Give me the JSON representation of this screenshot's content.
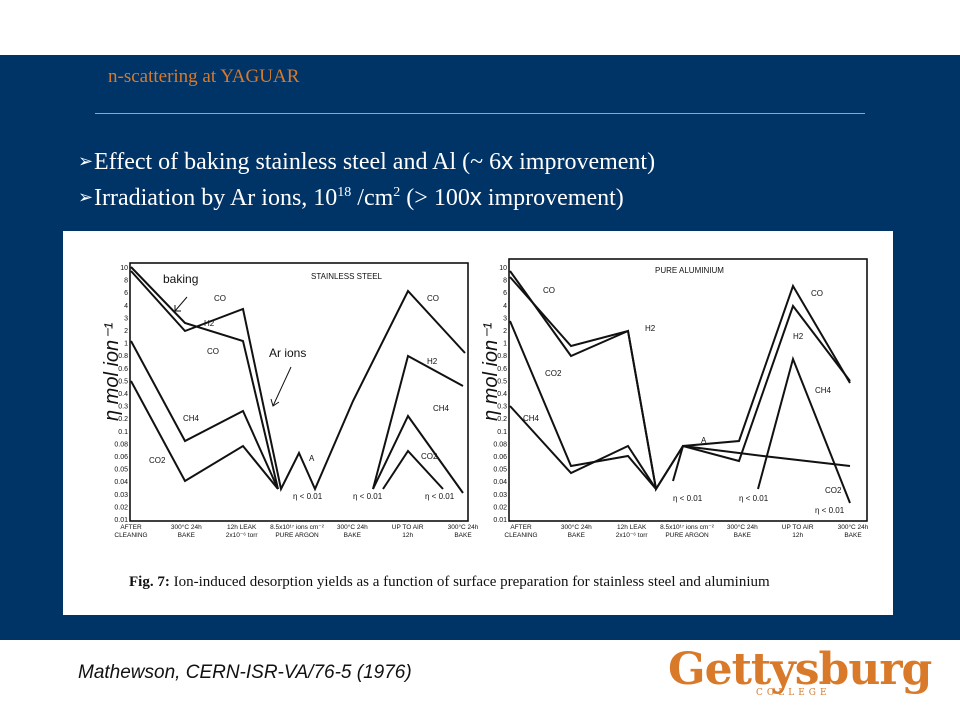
{
  "header": {
    "title": "n-scattering at YAGUAR"
  },
  "bullets": [
    {
      "pre": "Effect of baking stainless steel and Al (~ 6",
      "x": "x",
      "post": " improvement)"
    },
    {
      "pre": "Irradiation by Ar ions, 10",
      "sup1": "18",
      "mid": " /cm",
      "sup2": "2",
      "mid2": " (> 100",
      "x": "x",
      "post": " improvement)"
    }
  ],
  "figure": {
    "caption": "Fig. 7: Ion-induced desorption yields as a function of surface preparation for stainless steel and aluminium",
    "annotations": {
      "baking": "baking",
      "ar_ions": "Ar ions"
    },
    "ylabel": "η mol ion⁻¹",
    "y_ticks": [
      "10",
      "8",
      "6",
      "4",
      "3",
      "2",
      "1",
      "0.8",
      "0.6",
      "0.5",
      "0.4",
      "0.3",
      "0.2",
      "0.1",
      "0.08",
      "0.06",
      "0.05",
      "0.04",
      "0.03",
      "0.02",
      "0.01"
    ],
    "left_panel": {
      "title": "STAINLESS STEEL",
      "x_ticks": [
        "AFTER\nCLEANING",
        "300°C 24h\nBAKE",
        "12h LEAK\n2x10⁻⁶ torr",
        "8.5x10¹⁷ ions cm⁻²\nPURE ARGON",
        "300°C 24h\nBAKE",
        "UP TO AIR\n12h",
        "300°C 24h\nBAKE"
      ],
      "species": [
        "CO",
        "H2",
        "CO",
        "CH4",
        "CO2",
        "A",
        "CO",
        "H2",
        "CH4",
        "CO2"
      ],
      "limits": [
        "η < 0.01",
        "η < 0.01",
        "η < 0.01"
      ]
    },
    "right_panel": {
      "title": "PURE ALUMINIUM",
      "x_ticks": [
        "AFTER\nCLEANING",
        "300°C 24h\nBAKE",
        "12h LEAK\n2x10⁻⁶ torr",
        "8.5x10¹⁷ ions cm⁻²\nPURE ARGON",
        "300°C 24h\nBAKE",
        "UP TO AIR\n12h",
        "300°C 24h\nBAKE"
      ],
      "species": [
        "CO",
        "H2",
        "CO2",
        "CH4",
        "A",
        "CO",
        "H2",
        "CH4",
        "CO2"
      ],
      "limits": [
        "η < 0.01",
        "η < 0.01",
        "η < 0.01"
      ]
    }
  },
  "citation": "Mathewson, CERN-ISR-VA/76-5 (1976)",
  "logo": {
    "word": "Gettysburg",
    "sub": "COLLEGE"
  },
  "colors": {
    "slide_bg": "#003366",
    "accent": "#d97a2b",
    "bullet_text": "#ffffff"
  }
}
